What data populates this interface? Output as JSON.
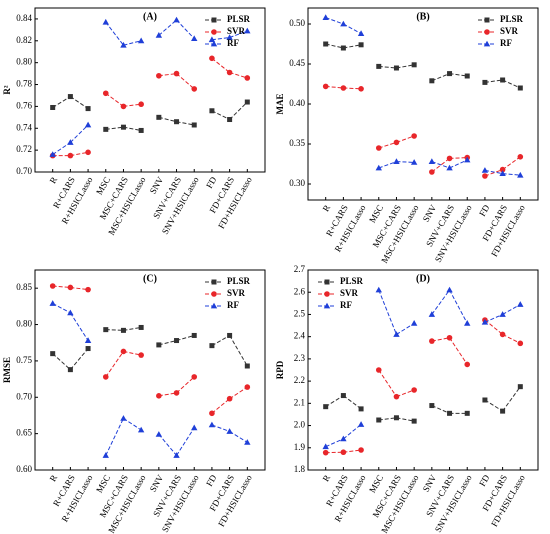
{
  "chart_data": [
    {
      "type": "line",
      "title": "(A)",
      "y_label": "R²",
      "categories": [
        "R",
        "R+CARS",
        "R+HSICLasso",
        "MSC",
        "MSC+CARS",
        "MSC+HSICLasso",
        "SNV",
        "SNV+CARS",
        "SNV+HSICLasso",
        "FD",
        "FD+CARS",
        "FD+HSICLasso"
      ],
      "series": [
        {
          "name": "PLSR",
          "color": "#333333",
          "marker": "square",
          "values": [
            0.759,
            0.769,
            0.758,
            0.739,
            0.741,
            0.738,
            0.75,
            0.746,
            0.743,
            0.756,
            0.748,
            0.764
          ]
        },
        {
          "name": "SVR",
          "color": "#e8262a",
          "marker": "circle",
          "values": [
            0.715,
            0.715,
            0.718,
            0.772,
            0.76,
            0.762,
            0.788,
            0.79,
            0.776,
            0.804,
            0.791,
            0.786
          ]
        },
        {
          "name": "RF",
          "color": "#1f3fd8",
          "marker": "triangle",
          "values": [
            0.716,
            0.727,
            0.743,
            0.837,
            0.816,
            0.82,
            0.825,
            0.839,
            0.822,
            0.821,
            0.823,
            0.829
          ]
        }
      ],
      "ylim": [
        0.7,
        0.85
      ],
      "yticks": [
        {
          "value": 0.7,
          "label": "0.70"
        },
        0.72,
        0.74,
        0.76,
        0.78,
        {
          "value": 0.8,
          "label": "0.80"
        },
        0.82,
        0.84
      ],
      "legend": "upper right"
    },
    {
      "type": "line",
      "title": "(B)",
      "y_label": "MAE",
      "categories": [
        "R",
        "R+CARS",
        "R+HSICLasso",
        "MSC",
        "MSC+CARS",
        "MSC+HSICLasso",
        "SNV",
        "SNV+CARS",
        "SNV+HSICLasso",
        "FD",
        "FD+CARS",
        "FD+HSICLasso"
      ],
      "series": [
        {
          "name": "PLSR",
          "color": "#333333",
          "marker": "square",
          "values": [
            0.475,
            0.47,
            0.474,
            0.447,
            0.445,
            0.449,
            0.429,
            0.438,
            0.435,
            0.427,
            0.43,
            0.42
          ]
        },
        {
          "name": "SVR",
          "color": "#e8262a",
          "marker": "circle",
          "values": [
            0.422,
            0.42,
            0.419,
            0.345,
            0.352,
            0.36,
            0.315,
            0.332,
            0.333,
            0.31,
            0.318,
            0.334
          ]
        },
        {
          "name": "RF",
          "color": "#1f3fd8",
          "marker": "triangle",
          "values": [
            0.508,
            0.5,
            0.488,
            0.32,
            0.328,
            0.327,
            0.328,
            0.32,
            0.33,
            0.317,
            0.313,
            0.311
          ]
        }
      ],
      "ylim": [
        0.28,
        0.52
      ],
      "yticks": [
        {
          "value": 0.3,
          "label": "0.30"
        },
        0.35,
        {
          "value": 0.4,
          "label": "0.40"
        },
        0.45,
        {
          "value": 0.5,
          "label": "0.50"
        }
      ],
      "legend": "upper right"
    },
    {
      "type": "line",
      "title": "(C)",
      "y_label": "RMSE",
      "categories": [
        "R",
        "R+CARS",
        "R+HSICLasso",
        "MSC",
        "MSC+CARS",
        "MSC+HSICLasso",
        "SNV",
        "SNV+CARS",
        "SNV+HSICLasso",
        "FD",
        "FD+CARS",
        "FD+HSICLasso"
      ],
      "series": [
        {
          "name": "PLSR",
          "color": "#333333",
          "marker": "square",
          "values": [
            0.76,
            0.738,
            0.767,
            0.793,
            0.792,
            0.796,
            0.772,
            0.778,
            0.785,
            0.771,
            0.785,
            0.743
          ]
        },
        {
          "name": "SVR",
          "color": "#e8262a",
          "marker": "circle",
          "values": [
            0.853,
            0.851,
            0.848,
            0.728,
            0.763,
            0.758,
            0.702,
            0.706,
            0.728,
            0.678,
            0.698,
            0.714
          ]
        },
        {
          "name": "RF",
          "color": "#1f3fd8",
          "marker": "triangle",
          "values": [
            0.829,
            0.816,
            0.778,
            0.62,
            0.671,
            0.655,
            0.649,
            0.62,
            0.658,
            0.662,
            0.653,
            0.638
          ]
        }
      ],
      "ylim": [
        0.6,
        0.875
      ],
      "yticks": [
        {
          "value": 0.6,
          "label": "0.60"
        },
        0.65,
        {
          "value": 0.7,
          "label": "0.70"
        },
        0.75,
        {
          "value": 0.8,
          "label": "0.80"
        },
        0.85
      ],
      "legend": "upper right"
    },
    {
      "type": "line",
      "title": "(D)",
      "y_label": "RPD",
      "categories": [
        "R",
        "R+CARS",
        "R+HSICLasso",
        "MSC",
        "MSC+CARS",
        "MSC+HSICLasso",
        "SNV",
        "SNV+CARS",
        "SNV+HSICLasso",
        "FD",
        "FD+CARS",
        "FD+HSICLasso"
      ],
      "series": [
        {
          "name": "PLSR",
          "color": "#333333",
          "marker": "square",
          "values": [
            2.085,
            2.135,
            2.075,
            2.025,
            2.035,
            2.02,
            2.09,
            2.055,
            2.055,
            2.115,
            2.065,
            2.175
          ]
        },
        {
          "name": "SVR",
          "color": "#e8262a",
          "marker": "circle",
          "values": [
            1.878,
            1.88,
            1.89,
            2.25,
            2.13,
            2.16,
            2.38,
            2.395,
            2.275,
            2.475,
            2.41,
            2.37
          ]
        },
        {
          "name": "RF",
          "color": "#1f3fd8",
          "marker": "triangle",
          "values": [
            1.905,
            1.94,
            2.005,
            2.61,
            2.41,
            2.46,
            2.5,
            2.61,
            2.46,
            2.465,
            2.5,
            2.545
          ]
        }
      ],
      "ylim": [
        1.8,
        2.7
      ],
      "yticks": [
        1.8,
        1.9,
        {
          "value": 2.0,
          "label": "2.0"
        },
        2.1,
        2.2,
        2.3,
        2.4,
        2.5,
        2.6,
        2.7
      ],
      "legend": "upper left"
    }
  ]
}
